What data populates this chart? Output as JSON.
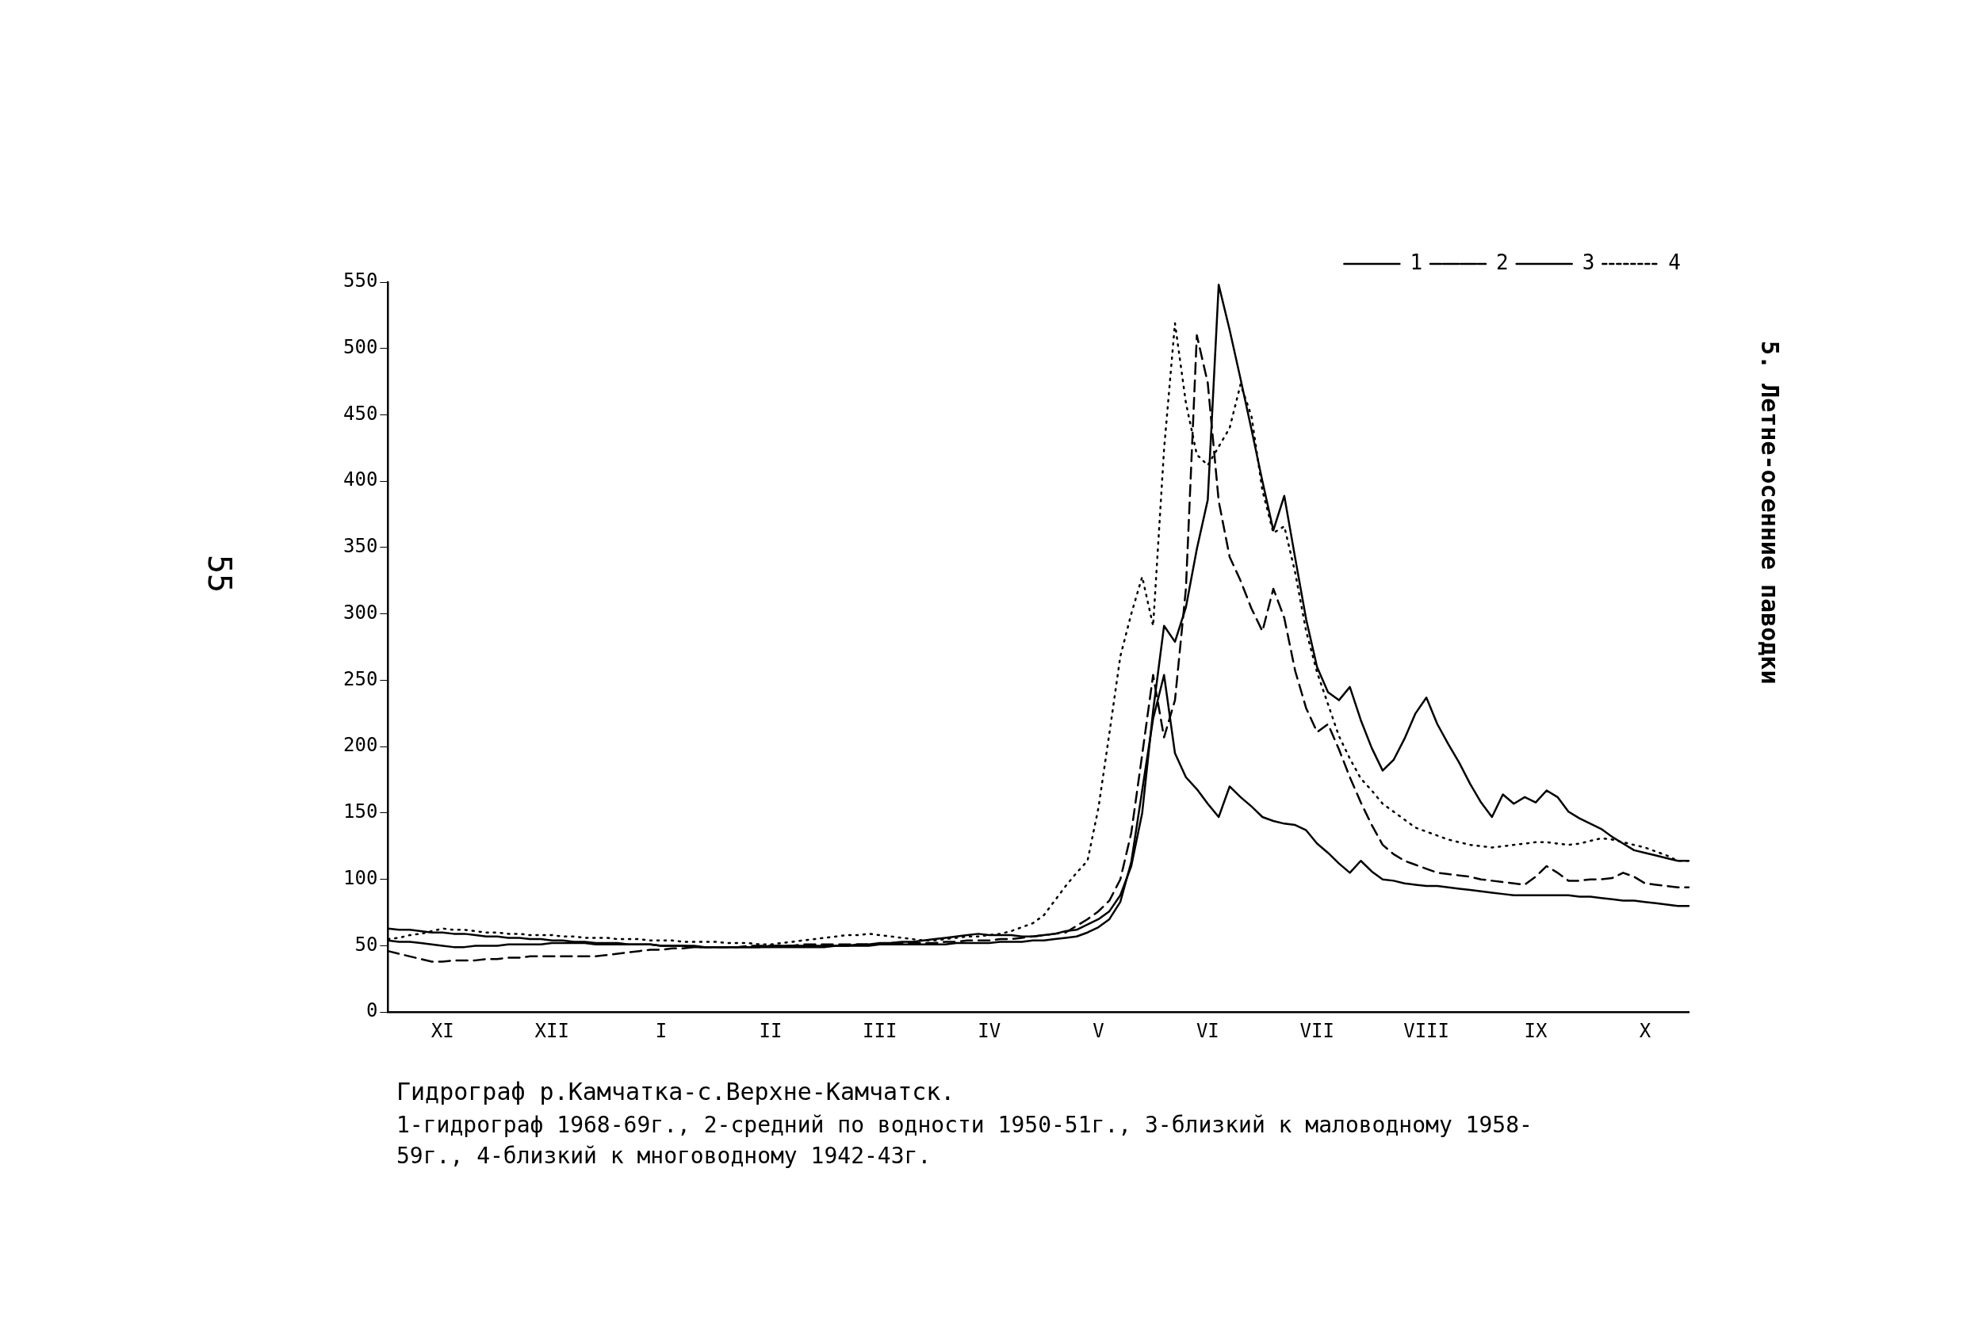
{
  "chart_data": {
    "type": "line",
    "title": "Гидрограф р.Камчатка-с.Верхне-Камчатск.",
    "annotations": [
      "1-гидрограф 1968-69г., 2-средний по водности 1950-51г., 3-близкий к маловодному 1958-59г., 4-близкий к многоводному 1942-43г.",
      "5. Летне-осенние паводки",
      "55"
    ],
    "categories": [
      null,
      null,
      null,
      null,
      null,
      "XI",
      null,
      null,
      null,
      null,
      null,
      null,
      null,
      null,
      null,
      "XII",
      null,
      null,
      null,
      null,
      null,
      null,
      null,
      null,
      null,
      "I",
      null,
      null,
      null,
      null,
      null,
      null,
      null,
      null,
      null,
      "II",
      null,
      null,
      null,
      null,
      null,
      null,
      null,
      null,
      null,
      "III",
      null,
      null,
      null,
      null,
      null,
      null,
      null,
      null,
      null,
      "IV",
      null,
      null,
      null,
      null,
      null,
      null,
      null,
      null,
      null,
      "V",
      null,
      null,
      null,
      null,
      null,
      null,
      null,
      null,
      null,
      "VI",
      null,
      null,
      null,
      null,
      null,
      null,
      null,
      null,
      null,
      "VII",
      null,
      null,
      null,
      null,
      null,
      null,
      null,
      null,
      null,
      "VIII",
      null,
      null,
      null,
      null,
      null,
      null,
      null,
      null,
      null,
      "IX",
      null,
      null,
      null,
      null,
      null,
      null,
      null,
      null,
      null,
      "X",
      null,
      null,
      null,
      null
    ],
    "ylim": [
      0,
      550
    ],
    "yticks": [
      0,
      50,
      100,
      150,
      200,
      250,
      300,
      350,
      400,
      450,
      500,
      550
    ],
    "legend": "top right",
    "marker": "none",
    "series": [
      {
        "name": "1",
        "color": "#000000",
        "line_style": "solid",
        "values": [
          63,
          62,
          62,
          61,
          60,
          60,
          59,
          59,
          58,
          57,
          57,
          56,
          56,
          55,
          55,
          54,
          54,
          53,
          53,
          52,
          52,
          52,
          51,
          51,
          51,
          50,
          50,
          50,
          49,
          49,
          49,
          49,
          49,
          49,
          49,
          49,
          49,
          49,
          49,
          49,
          49,
          50,
          50,
          51,
          51,
          52,
          52,
          53,
          53,
          54,
          55,
          56,
          57,
          58,
          59,
          58,
          58,
          58,
          57,
          57,
          58,
          59,
          61,
          62,
          66,
          70,
          76,
          88,
          110,
          150,
          227,
          291,
          279,
          305,
          349,
          386,
          548,
          514,
          477,
          439,
          400,
          363,
          389,
          342,
          296,
          260,
          241,
          235,
          245,
          220,
          199,
          182,
          190,
          206,
          225,
          237,
          217,
          202,
          188,
          172,
          158,
          147,
          164,
          157,
          162,
          158,
          167,
          162,
          151,
          146,
          142,
          138,
          132,
          127,
          122,
          120,
          118,
          116,
          114,
          114
        ]
      },
      {
        "name": "2",
        "color": "#000000",
        "line_style": "dashed",
        "values": [
          46,
          44,
          42,
          40,
          38,
          38,
          39,
          39,
          39,
          40,
          40,
          41,
          41,
          42,
          42,
          42,
          42,
          42,
          42,
          42,
          43,
          44,
          45,
          46,
          47,
          47,
          48,
          48,
          49,
          49,
          49,
          49,
          49,
          50,
          50,
          50,
          50,
          50,
          51,
          51,
          51,
          51,
          51,
          51,
          51,
          51,
          52,
          52,
          52,
          52,
          52,
          53,
          53,
          54,
          54,
          54,
          55,
          55,
          56,
          57,
          58,
          59,
          60,
          65,
          70,
          76,
          84,
          100,
          135,
          194,
          254,
          207,
          235,
          319,
          510,
          474,
          385,
          343,
          325,
          304,
          287,
          319,
          297,
          257,
          229,
          211,
          217,
          198,
          177,
          158,
          141,
          126,
          119,
          114,
          111,
          108,
          105,
          104,
          103,
          102,
          100,
          99,
          98,
          97,
          96,
          102,
          110,
          105,
          99,
          99,
          100,
          100,
          101,
          105,
          102,
          97,
          96,
          95,
          94,
          94
        ]
      },
      {
        "name": "3",
        "color": "#000000",
        "line_style": "solid",
        "values": [
          54,
          53,
          53,
          52,
          51,
          50,
          49,
          49,
          50,
          50,
          50,
          51,
          51,
          51,
          51,
          52,
          52,
          52,
          52,
          51,
          51,
          51,
          51,
          51,
          51,
          50,
          50,
          50,
          50,
          49,
          49,
          49,
          49,
          49,
          49,
          50,
          50,
          50,
          50,
          50,
          50,
          50,
          50,
          50,
          50,
          51,
          51,
          51,
          51,
          51,
          51,
          51,
          52,
          52,
          52,
          52,
          53,
          53,
          53,
          54,
          54,
          55,
          56,
          57,
          60,
          64,
          70,
          83,
          113,
          167,
          221,
          254,
          195,
          177,
          168,
          157,
          147,
          170,
          162,
          155,
          147,
          144,
          142,
          141,
          137,
          127,
          120,
          112,
          105,
          114,
          106,
          100,
          99,
          97,
          96,
          95,
          95,
          94,
          93,
          92,
          91,
          90,
          89,
          88,
          88,
          88,
          88,
          88,
          88,
          87,
          87,
          86,
          85,
          84,
          84,
          83,
          82,
          81,
          80,
          80
        ]
      },
      {
        "name": "4",
        "color": "#000000",
        "line_style": "dotted",
        "values": [
          55,
          56,
          58,
          59,
          61,
          63,
          62,
          62,
          61,
          60,
          60,
          59,
          59,
          58,
          58,
          58,
          57,
          57,
          56,
          56,
          56,
          55,
          55,
          55,
          54,
          54,
          54,
          53,
          53,
          53,
          53,
          52,
          52,
          52,
          51,
          51,
          52,
          53,
          54,
          55,
          56,
          57,
          58,
          58,
          59,
          58,
          57,
          56,
          55,
          54,
          54,
          55,
          56,
          57,
          57,
          58,
          59,
          61,
          64,
          67,
          73,
          84,
          95,
          105,
          114,
          154,
          210,
          268,
          300,
          328,
          291,
          424,
          519,
          459,
          420,
          412,
          426,
          440,
          473,
          449,
          393,
          361,
          366,
          331,
          287,
          256,
          232,
          208,
          191,
          176,
          167,
          157,
          151,
          145,
          139,
          136,
          133,
          130,
          128,
          126,
          125,
          124,
          125,
          126,
          127,
          128,
          128,
          127,
          126,
          127,
          129,
          131,
          130,
          128,
          126,
          124,
          121,
          118,
          114,
          114
        ]
      }
    ]
  }
}
